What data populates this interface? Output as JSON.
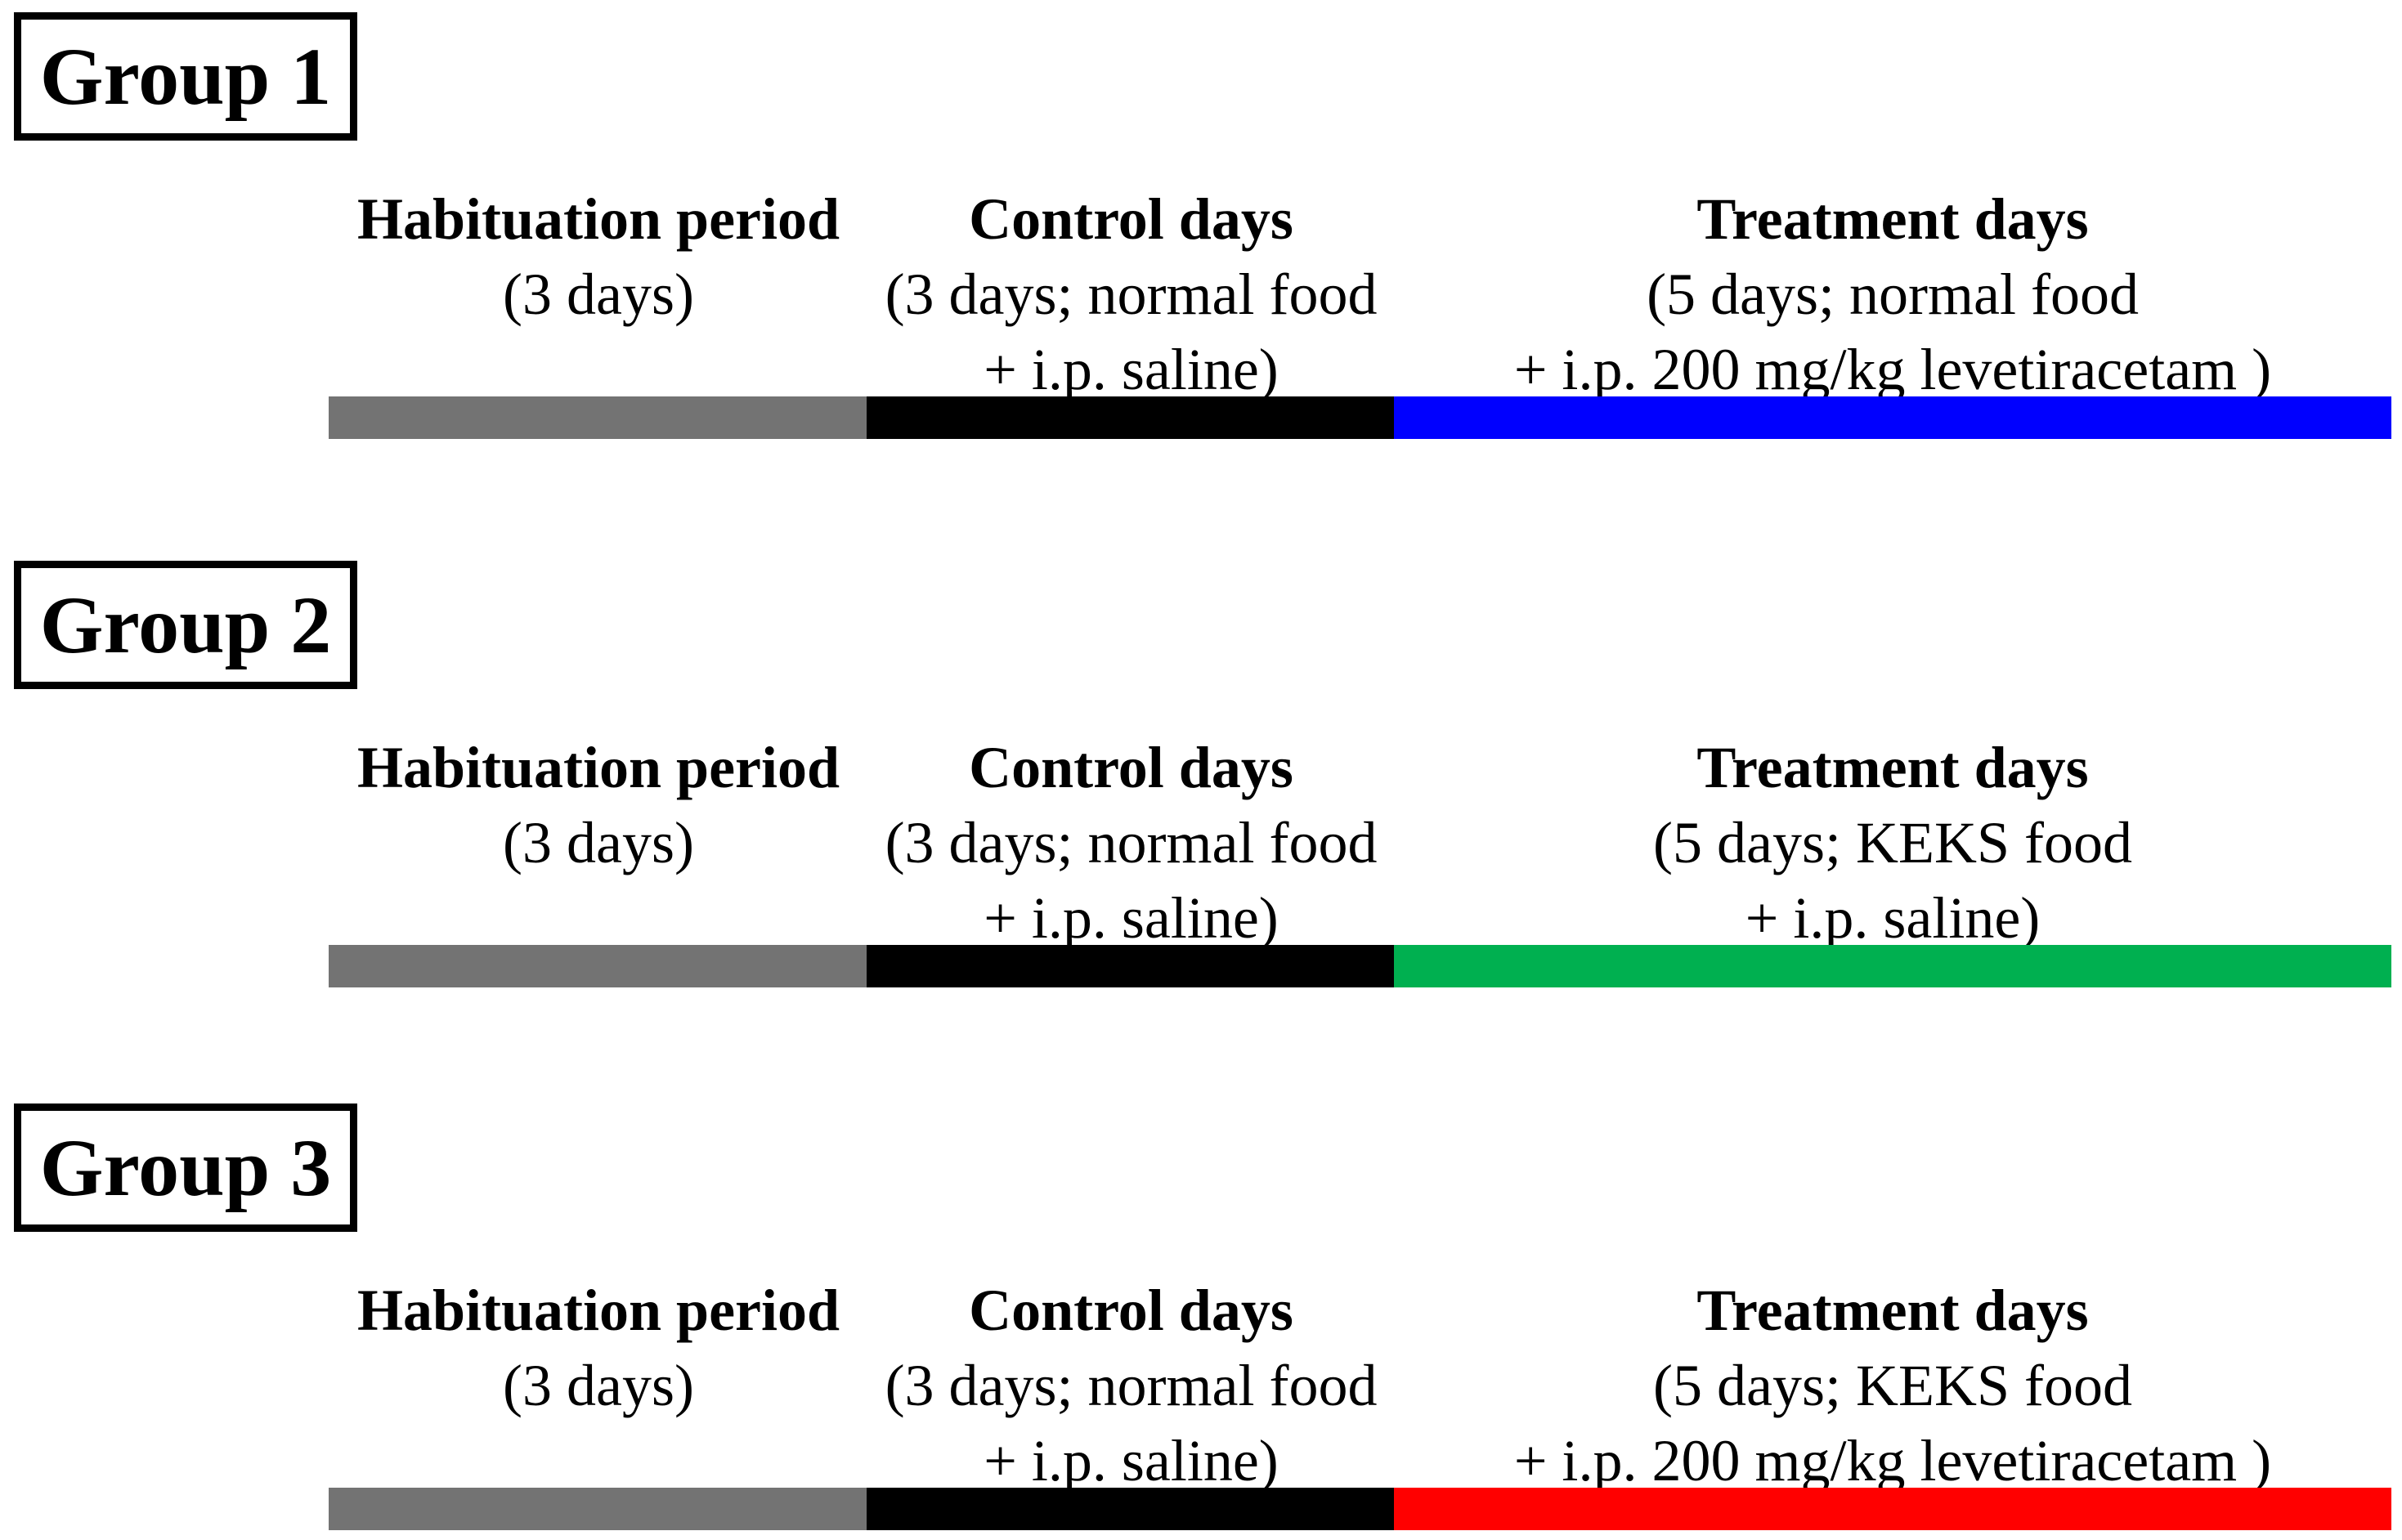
{
  "figure": {
    "background_color": "#ffffff",
    "bar_colors": {
      "habituation": "#737373",
      "control": "#000000",
      "treatment_group1": "#0000ff",
      "treatment_group2": "#00b050",
      "treatment_group3": "#ff0000"
    }
  },
  "groups": [
    {
      "label": "Group 1",
      "phases": [
        {
          "title": "Habituation period",
          "sub1": "(3 days)",
          "bar_color": "#737373"
        },
        {
          "title": "Control days",
          "sub1": "(3 days; normal food",
          "sub2": "+ i.p. saline)",
          "bar_color": "#000000"
        },
        {
          "title": "Treatment days",
          "sub1": "(5 days; normal food",
          "sub2": "+ i.p. 200 mg/kg levetiracetam )",
          "bar_color": "#0000ff"
        }
      ]
    },
    {
      "label": "Group 2",
      "phases": [
        {
          "title": "Habituation period",
          "sub1": "(3 days)",
          "bar_color": "#737373"
        },
        {
          "title": "Control days",
          "sub1": "(3 days; normal food",
          "sub2": "+ i.p. saline)",
          "bar_color": "#000000"
        },
        {
          "title": "Treatment days",
          "sub1": "(5 days; KEKS food",
          "sub2": "+ i.p. saline)",
          "bar_color": "#00b050"
        }
      ]
    },
    {
      "label": "Group 3",
      "phases": [
        {
          "title": "Habituation period",
          "sub1": "(3 days)",
          "bar_color": "#737373"
        },
        {
          "title": "Control days",
          "sub1": "(3 days; normal food",
          "sub2": "+ i.p. saline)",
          "bar_color": "#000000"
        },
        {
          "title": "Treatment days",
          "sub1": "(5 days; KEKS food",
          "sub2": "+ i.p. 200 mg/kg levetiracetam )",
          "bar_color": "#ff0000"
        }
      ]
    }
  ]
}
